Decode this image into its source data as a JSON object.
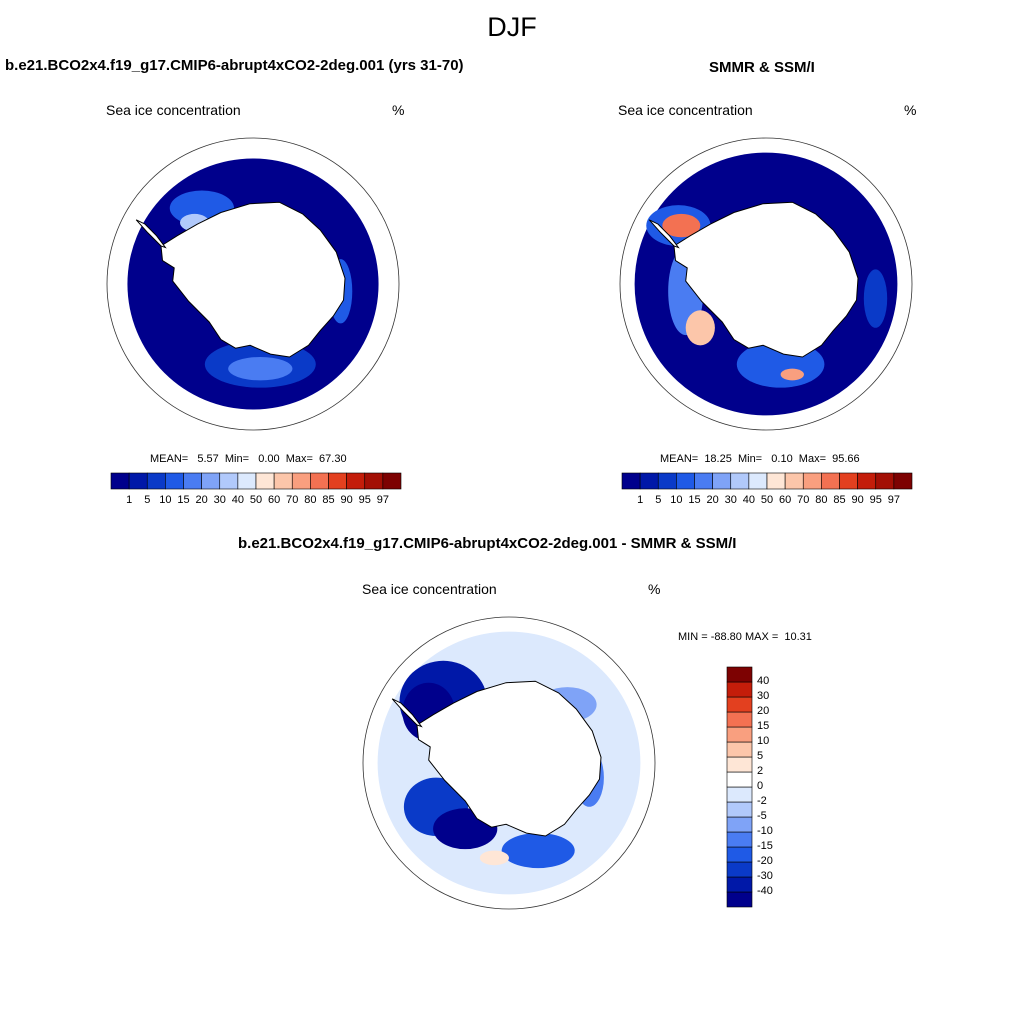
{
  "figure": {
    "title": "DJF",
    "panels": [
      {
        "title": "b.e21.BCO2x4.f19_g17.CMIP6-abrupt4xCO2-2deg.001 (yrs 31-70)",
        "left_label": "Sea ice concentration",
        "right_label": "%",
        "stats": "MEAN=   5.57  Min=   0.00  Max=  67.30"
      },
      {
        "title": "SMMR & SSM/I",
        "left_label": "Sea ice concentration",
        "right_label": "%",
        "stats": "MEAN=  18.25  Min=   0.10  Max=  95.66"
      },
      {
        "title": "b.e21.BCO2x4.f19_g17.CMIP6-abrupt4xCO2-2deg.001 - SMMR & SSM/I",
        "left_label": "Sea ice concentration",
        "right_label": "%",
        "stats": "MIN = -88.80 MAX =  10.31"
      }
    ]
  },
  "chart_data": [
    {
      "type": "heatmap",
      "projection": "south-polar-stereographic",
      "title": "b.e21.BCO2x4.f19_g17.CMIP6-abrupt4xCO2-2deg.001 (yrs 31-70)",
      "variable": "Sea ice concentration",
      "units": "%",
      "mean": 5.57,
      "min": 0.0,
      "max": 67.3,
      "colorbar": {
        "orientation": "horizontal",
        "levels": [
          "1",
          "5",
          "10",
          "15",
          "20",
          "30",
          "40",
          "50",
          "60",
          "70",
          "80",
          "85",
          "90",
          "95",
          "97"
        ],
        "colors": [
          "#00008c",
          "#0018a8",
          "#0a3ac8",
          "#1f5ae6",
          "#4a7cf2",
          "#7fa3f7",
          "#b1c9fb",
          "#dce9fd",
          "#fee6d6",
          "#fcc6aa",
          "#f99f7f",
          "#f37152",
          "#e3401f",
          "#c41d0a",
          "#a30f05",
          "#7d0202"
        ]
      }
    },
    {
      "type": "heatmap",
      "projection": "south-polar-stereographic",
      "title": "SMMR & SSM/I",
      "variable": "Sea ice concentration",
      "units": "%",
      "mean": 18.25,
      "min": 0.1,
      "max": 95.66,
      "colorbar": {
        "orientation": "horizontal",
        "levels": [
          "1",
          "5",
          "10",
          "15",
          "20",
          "30",
          "40",
          "50",
          "60",
          "70",
          "80",
          "85",
          "90",
          "95",
          "97"
        ],
        "colors": [
          "#00008c",
          "#0018a8",
          "#0a3ac8",
          "#1f5ae6",
          "#4a7cf2",
          "#7fa3f7",
          "#b1c9fb",
          "#dce9fd",
          "#fee6d6",
          "#fcc6aa",
          "#f99f7f",
          "#f37152",
          "#e3401f",
          "#c41d0a",
          "#a30f05",
          "#7d0202"
        ]
      }
    },
    {
      "type": "heatmap",
      "projection": "south-polar-stereographic",
      "title": "b.e21.BCO2x4.f19_g17.CMIP6-abrupt4xCO2-2deg.001 - SMMR & SSM/I",
      "variable": "Sea ice concentration",
      "units": "%",
      "min": -88.8,
      "max": 10.31,
      "colorbar": {
        "orientation": "vertical",
        "levels": [
          "-40",
          "-30",
          "-20",
          "-15",
          "-10",
          "-5",
          "-2",
          "0",
          "2",
          "5",
          "10",
          "15",
          "20",
          "30",
          "40"
        ],
        "colors": [
          "#00008c",
          "#0018a8",
          "#0a3ac8",
          "#1f5ae6",
          "#4a7cf2",
          "#7fa3f7",
          "#b1c9fb",
          "#dce9fd",
          "#ffffff",
          "#fee6d6",
          "#fcc6aa",
          "#f99f7f",
          "#f37152",
          "#e3401f",
          "#c41d0a",
          "#7d0202"
        ]
      }
    }
  ]
}
